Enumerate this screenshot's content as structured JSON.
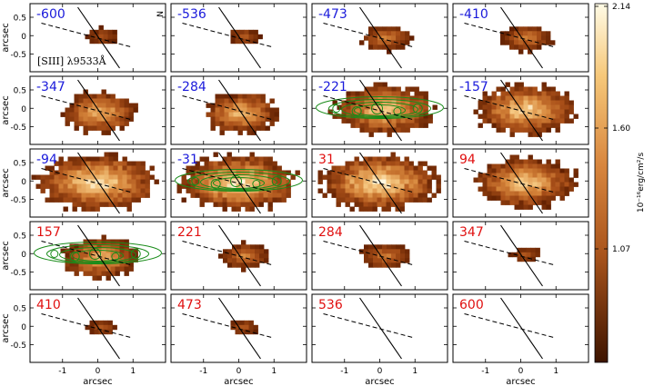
{
  "panels": [
    {
      "label": "-600",
      "color": "#1a1adb",
      "emission": 1
    },
    {
      "label": "-536",
      "color": "#1a1adb",
      "emission": 1
    },
    {
      "label": "-473",
      "color": "#1a1adb",
      "emission": 2
    },
    {
      "label": "-410",
      "color": "#1a1adb",
      "emission": 2
    },
    {
      "label": "-347",
      "color": "#1a1adb",
      "emission": 3
    },
    {
      "label": "-284",
      "color": "#1a1adb",
      "emission": 3
    },
    {
      "label": "-221",
      "color": "#1a1adb",
      "emission": 4,
      "contours": true
    },
    {
      "label": "-157",
      "color": "#1a1adb",
      "emission": 4
    },
    {
      "label": "-94",
      "color": "#1a1adb",
      "emission": 5
    },
    {
      "label": "-31",
      "color": "#1a1adb",
      "emission": 5,
      "contours": true
    },
    {
      "label": "31",
      "color": "#e01010",
      "emission": 5
    },
    {
      "label": "94",
      "color": "#e01010",
      "emission": 4
    },
    {
      "label": "157",
      "color": "#e01010",
      "emission": 3,
      "contours": true
    },
    {
      "label": "221",
      "color": "#e01010",
      "emission": 2
    },
    {
      "label": "284",
      "color": "#e01010",
      "emission": 2
    },
    {
      "label": "347",
      "color": "#e01010",
      "emission": 1
    },
    {
      "label": "410",
      "color": "#e01010",
      "emission": 1
    },
    {
      "label": "473",
      "color": "#e01010",
      "emission": 1
    },
    {
      "label": "536",
      "color": "#e01010",
      "emission": 0
    },
    {
      "label": "600",
      "color": "#e01010",
      "emission": 0
    }
  ],
  "line_label": "[SIII] λ9533Å",
  "compass_label": "N",
  "axes": {
    "xlabel": "arcsec",
    "ylabel": "arcsec",
    "xticks": [
      "-1",
      "0",
      "1"
    ],
    "yticks": [
      "0.5",
      "0",
      "-0.5"
    ]
  },
  "colorbar": {
    "label": "10⁻¹⁶erg/cm²/s",
    "ticks": [
      "2.14",
      "1.60",
      "1.07"
    ],
    "cmap": "hot-orange",
    "top_color": "#fff6d0",
    "bottom_color": "#3d1400"
  }
}
